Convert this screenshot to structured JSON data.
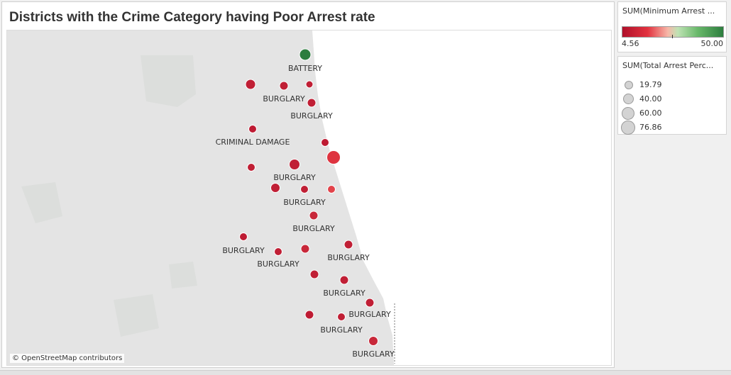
{
  "title": "Districts with the Crime Category having Poor Arrest rate",
  "map": {
    "credit": "© OpenStreetMap contributors",
    "land_color": "#e4e4e4",
    "water_color": "#ffffff"
  },
  "legend_color": {
    "title": "SUM(Minimum Arrest ...",
    "min": "4.56",
    "max": "50.00",
    "low_color": "#b0102a",
    "high_color": "#2c7d3e"
  },
  "legend_size": {
    "title": "SUM(Total Arrest Perc...",
    "items": [
      "19.79",
      "40.00",
      "60.00",
      "76.86"
    ]
  },
  "chart_data": {
    "type": "scatter",
    "title": "Districts with the Crime Category having Poor Arrest rate",
    "color_measure": "SUM(Minimum Arrest ...",
    "size_measure": "SUM(Total Arrest Perc...",
    "color_range": [
      4.56,
      50.0
    ],
    "size_range": [
      19.79,
      76.86
    ],
    "marks": [
      {
        "label": "BATTERY",
        "color": "#2c7d3e"
      },
      {
        "label": "",
        "color": "#c01f35"
      },
      {
        "label": "BURGLARY",
        "color": "#c01f35"
      },
      {
        "label": "",
        "color": "#c01f35"
      },
      {
        "label": "BURGLARY",
        "color": "#c01f35"
      },
      {
        "label": "CRIMINAL DAMAGE",
        "color": "#be1b33"
      },
      {
        "label": "",
        "color": "#c01f35"
      },
      {
        "label": "",
        "color": "#de3440"
      },
      {
        "label": "",
        "color": "#be1b33"
      },
      {
        "label": "BURGLARY",
        "color": "#c01f35"
      },
      {
        "label": "",
        "color": "#c01f35"
      },
      {
        "label": "BURGLARY",
        "color": "#c01f35"
      },
      {
        "label": "",
        "color": "#e2434a"
      },
      {
        "label": "BURGLARY",
        "color": "#c8283a"
      },
      {
        "label": "BURGLARY",
        "color": "#be1b33"
      },
      {
        "label": "BURGLARY",
        "color": "#c01f35"
      },
      {
        "label": "",
        "color": "#c8283a"
      },
      {
        "label": "BURGLARY",
        "color": "#c01f35"
      },
      {
        "label": "",
        "color": "#c01f35"
      },
      {
        "label": "BURGLARY",
        "color": "#c01f35"
      },
      {
        "label": "BURGLARY",
        "color": "#c01f35"
      },
      {
        "label": "",
        "color": "#be1b33"
      },
      {
        "label": "BURGLARY",
        "color": "#c01f35"
      },
      {
        "label": "BURGLARY",
        "color": "#c8283a"
      }
    ]
  }
}
